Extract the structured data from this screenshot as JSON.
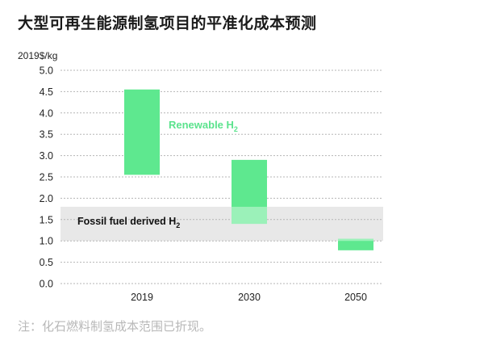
{
  "header": {
    "title": "大型可再生能源制氢项目的平准化成本预测",
    "unit": "2019$/kg"
  },
  "footnote": "注：化石燃料制氢成本范围已折现。",
  "chart_data": {
    "type": "bar",
    "subtype": "floating-range",
    "title": "大型可再生能源制氢项目的平准化成本预测",
    "ylabel": "2019$/kg",
    "ylim": [
      0,
      5
    ],
    "yticks": [
      "0.0",
      "0.5",
      "1.0",
      "1.5",
      "2.0",
      "2.5",
      "3.0",
      "3.5",
      "4.0",
      "4.5",
      "5.0"
    ],
    "grid": true,
    "categories": [
      "2019",
      "2030",
      "2050"
    ],
    "series": [
      {
        "name": "Renewable H2",
        "color": "#5ee88f",
        "ranges": [
          [
            2.55,
            4.55
          ],
          [
            1.4,
            2.9
          ],
          [
            0.78,
            1.05
          ]
        ]
      }
    ],
    "bands": [
      {
        "name": "Fossil fuel derived H2",
        "color": "#e8e8e8",
        "range": [
          1.0,
          1.8
        ]
      }
    ],
    "annotations": {
      "renewable_label": "Renewable H",
      "renewable_sub": "2",
      "fossil_label": "Fossil fuel derived H",
      "fossil_sub": "2"
    }
  }
}
